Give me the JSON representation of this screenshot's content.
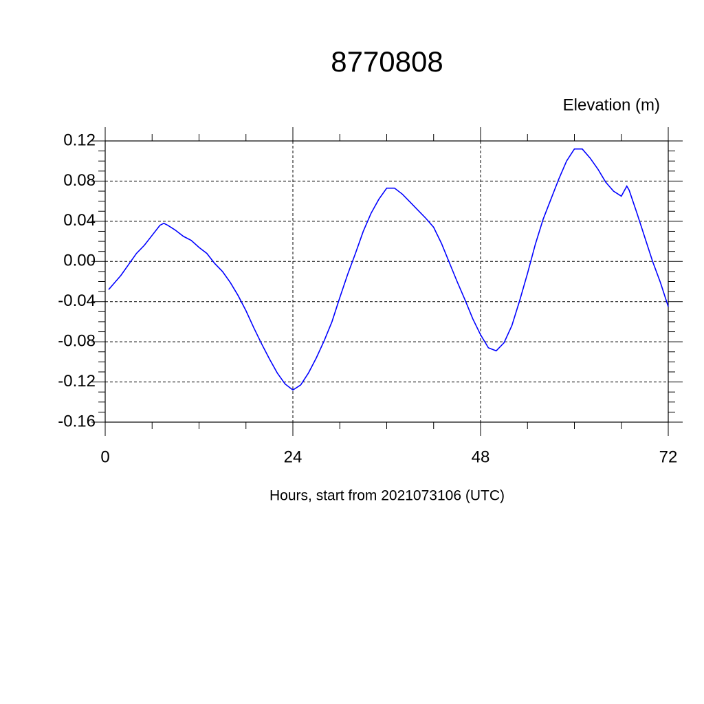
{
  "chart_data": {
    "type": "line",
    "title": "8770808",
    "ylabel": "Elevation (m)",
    "xlabel": "Hours, start from 2021073106 (UTC)",
    "x": [
      0.44,
      1,
      2,
      3,
      4,
      5,
      6,
      7,
      7.5,
      8,
      9,
      10,
      11,
      12,
      13,
      14,
      15,
      16,
      17,
      18,
      19,
      20,
      21,
      22,
      23,
      24,
      25,
      26,
      27,
      28,
      29,
      30,
      31,
      32,
      33,
      34,
      35,
      36,
      37,
      38,
      39,
      40,
      41,
      42,
      43,
      44,
      45,
      46,
      47,
      48,
      49,
      50,
      51,
      52,
      53,
      54,
      55,
      56,
      57,
      58,
      59,
      60,
      61,
      62,
      63,
      64,
      65,
      66,
      66.7,
      67,
      68,
      69,
      70,
      71,
      72
    ],
    "series": [
      {
        "name": "Elevation",
        "color": "#0000ff",
        "values": [
          -0.028,
          -0.023,
          -0.014,
          -0.003,
          0.008,
          0.016,
          0.026,
          0.036,
          0.038,
          0.036,
          0.031,
          0.025,
          0.021,
          0.014,
          0.008,
          -0.002,
          -0.01,
          -0.021,
          -0.034,
          -0.049,
          -0.066,
          -0.082,
          -0.097,
          -0.111,
          -0.122,
          -0.128,
          -0.123,
          -0.111,
          -0.096,
          -0.079,
          -0.06,
          -0.036,
          -0.013,
          0.008,
          0.03,
          0.048,
          0.062,
          0.073,
          0.073,
          0.067,
          0.059,
          0.051,
          0.043,
          0.034,
          0.018,
          -0.001,
          -0.02,
          -0.038,
          -0.057,
          -0.073,
          -0.086,
          -0.089,
          -0.081,
          -0.064,
          -0.039,
          -0.012,
          0.017,
          0.042,
          0.062,
          0.082,
          0.1,
          0.112,
          0.112,
          0.103,
          0.092,
          0.079,
          0.07,
          0.065,
          0.075,
          0.071,
          0.048,
          0.024,
          0.0,
          -0.021,
          -0.045
        ]
      }
    ],
    "xlim": [
      0,
      72
    ],
    "xticks": [
      0,
      24,
      48,
      72
    ],
    "xminorticks": [
      6,
      12,
      18,
      30,
      36,
      42,
      54,
      60,
      66
    ],
    "ylim": [
      -0.16,
      0.12
    ],
    "yticks": [
      0.12,
      0.08,
      0.04,
      {
        "value": 0,
        "label": "0.00"
      },
      -0.04,
      -0.08,
      -0.12,
      -0.16
    ],
    "yminorticks": [
      -0.15,
      -0.14,
      -0.13,
      -0.11,
      -0.1,
      -0.09,
      -0.07,
      -0.06,
      -0.05,
      -0.03,
      -0.02,
      -0.01,
      0.01,
      0.02,
      0.03,
      0.05,
      0.06,
      0.07,
      0.09,
      0.1,
      0.11
    ],
    "grid": true
  }
}
